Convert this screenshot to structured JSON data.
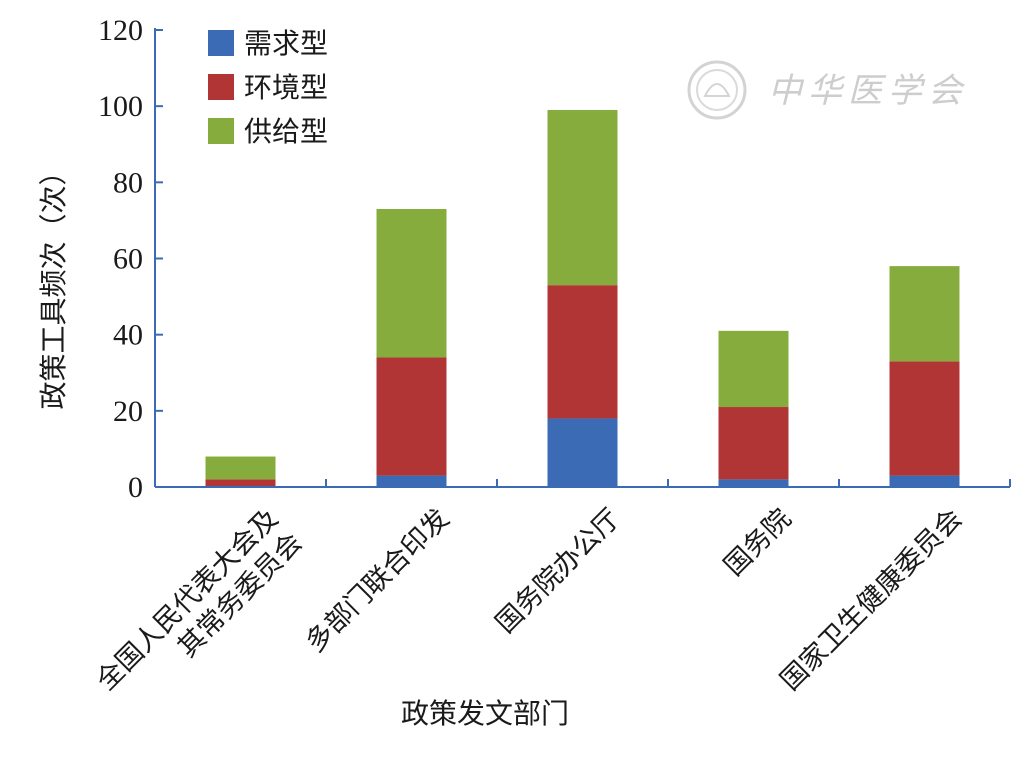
{
  "watermark": {
    "text": "中华医学会"
  },
  "chart_data": {
    "type": "bar",
    "stacked": true,
    "xlabel": "政策发文部门",
    "ylabel": "政策工具频次（次）",
    "ylim": [
      0,
      120
    ],
    "yticks": [
      0,
      20,
      40,
      60,
      80,
      100,
      120
    ],
    "grid": false,
    "legend_position": "top-left",
    "categories": [
      [
        "全国人民代表大会及",
        "其常务委员会"
      ],
      [
        "多部门联合印发"
      ],
      [
        "国务院办公厅"
      ],
      [
        "国务院"
      ],
      [
        "国家卫生健康委员会"
      ]
    ],
    "series": [
      {
        "name": "需求型",
        "color": "#3b6bb5",
        "values": [
          0,
          3,
          18,
          2,
          3
        ]
      },
      {
        "name": "环境型",
        "color": "#b23535",
        "values": [
          2,
          31,
          35,
          19,
          30
        ]
      },
      {
        "name": "供给型",
        "color": "#86ac3d",
        "values": [
          6,
          39,
          46,
          20,
          25
        ]
      }
    ]
  }
}
